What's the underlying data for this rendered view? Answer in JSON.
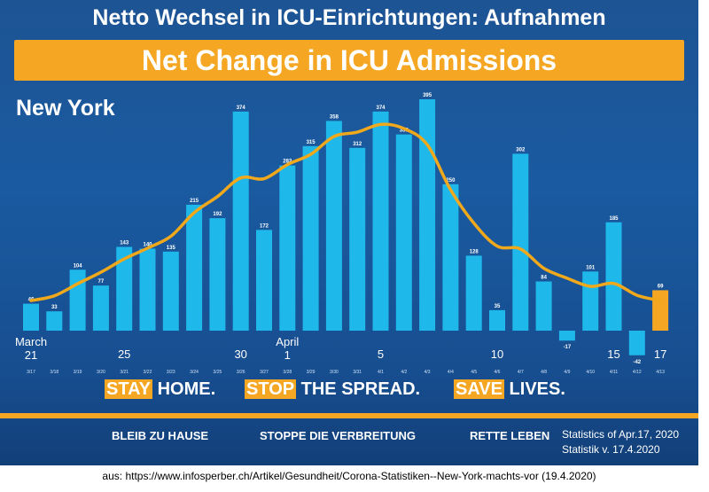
{
  "header": {
    "title": "Netto Wechsel in ICU-Einrichtungen: Aufnahmen",
    "banner": "Net Change in ICU Admissions",
    "region": "New York"
  },
  "chart_data": {
    "type": "bar",
    "title": "Net Change in ICU Admissions",
    "categories": [
      "3/17",
      "3/18",
      "3/19",
      "3/20",
      "3/21",
      "3/22",
      "3/23",
      "3/24",
      "3/25",
      "3/26",
      "3/27",
      "3/28",
      "3/29",
      "3/30",
      "3/31",
      "4/1",
      "4/2",
      "4/3",
      "4/4",
      "4/5",
      "4/6",
      "4/7",
      "4/8",
      "4/9",
      "4/10",
      "4/11",
      "4/12",
      "4/13"
    ],
    "values": [
      46,
      33,
      104,
      77,
      143,
      140,
      135,
      215,
      192,
      374,
      172,
      282,
      315,
      358,
      312,
      374,
      335,
      395,
      250,
      128,
      35,
      302,
      84,
      -17,
      101,
      185,
      -42,
      69
    ],
    "trend_line": "smoothed average (orange)",
    "bar_color": "#1eb8ea",
    "highlight_color": "#f5a623",
    "line_color": "#f0a81c",
    "overlay_labels": [
      {
        "label": "March\n21",
        "at": "3/17"
      },
      {
        "label": "25",
        "at": "3/21"
      },
      {
        "label": "30",
        "at": "3/26"
      },
      {
        "label": "April\n1",
        "at": "3/28"
      },
      {
        "label": "5",
        "at": "4/1"
      },
      {
        "label": "10",
        "at": "4/6"
      },
      {
        "label": "15",
        "at": "4/11"
      },
      {
        "label": "17",
        "at": "4/13"
      }
    ]
  },
  "slogans": {
    "stay": "STAY",
    "home": " HOME.",
    "stop": "STOP",
    "spread": " THE SPREAD.",
    "save": "SAVE",
    "lives": " LIVES."
  },
  "footer": {
    "de1": "BLEIB ZU HAUSE",
    "de2": "STOPPE DIE VERBREITUNG",
    "de3": "RETTE LEBEN",
    "stat_en": "Statistics of Apr.17, 2020",
    "stat_de": "Statistik v. 17.4.2020"
  },
  "source": "aus: https://www.infosperber.ch/Artikel/Gesundheit/Corona-Statistiken--New-York-machts-vor (19.4.2020)"
}
